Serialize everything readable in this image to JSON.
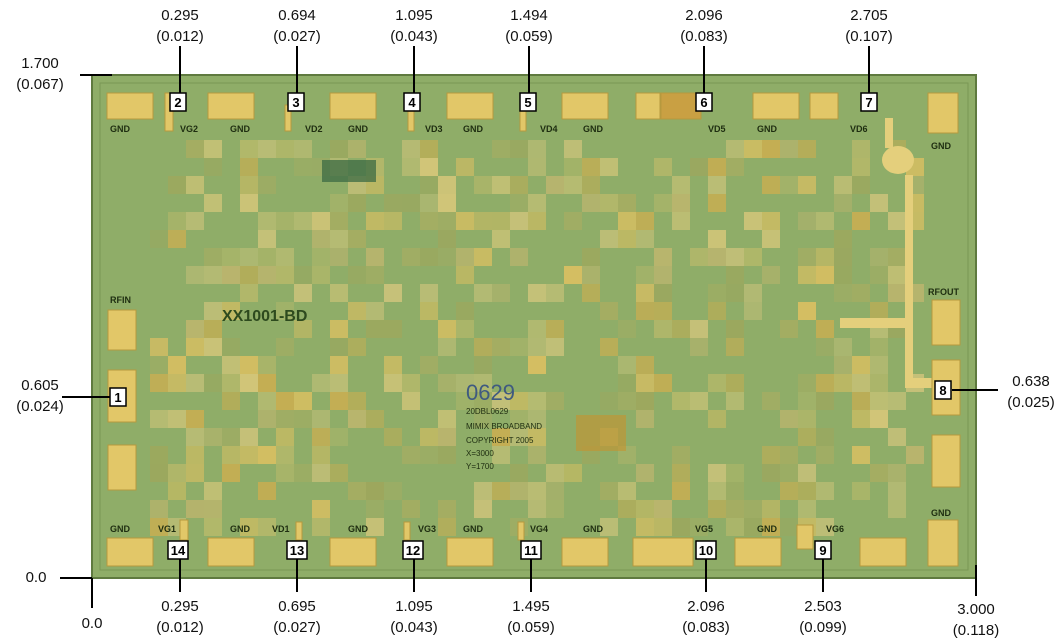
{
  "chip": {
    "part_number": "XX1001-BD",
    "logo_number": "0629",
    "info_lines": [
      "20DBL0629",
      "MIMIX BROADBAND",
      "COPYRIGHT 2005",
      "X=3000",
      "Y=1700"
    ],
    "colors": {
      "die": "#8fad68",
      "die_edge": "#5f7a3f",
      "pad": "#e2c768",
      "pad_dark": "#c9a043",
      "trace": "#e4cf7c"
    }
  },
  "top_pad_labels": [
    "GND",
    "VG2",
    "GND",
    "VD2",
    "GND",
    "VD3",
    "GND",
    "VD4",
    "GND",
    "VD5",
    "GND",
    "VD6",
    "GND"
  ],
  "bottom_pad_labels": [
    "GND",
    "VG1",
    "GND",
    "VD1",
    "GND",
    "VG3",
    "GND",
    "VG4",
    "GND",
    "VG5",
    "GND",
    "VG6",
    "GND"
  ],
  "side_labels": {
    "left": "RFIN",
    "right": "RFOUT"
  },
  "top_dims": [
    {
      "pin": "2",
      "value": "0.295",
      "inch": "(0.012)"
    },
    {
      "pin": "3",
      "value": "0.694",
      "inch": "(0.027)"
    },
    {
      "pin": "4",
      "value": "1.095",
      "inch": "(0.043)"
    },
    {
      "pin": "5",
      "value": "1.494",
      "inch": "(0.059)"
    },
    {
      "pin": "6",
      "value": "2.096",
      "inch": "(0.083)"
    },
    {
      "pin": "7",
      "value": "2.705",
      "inch": "(0.107)"
    }
  ],
  "bottom_dims": [
    {
      "pin": "14",
      "value": "0.295",
      "inch": "(0.012)"
    },
    {
      "pin": "13",
      "value": "0.695",
      "inch": "(0.027)"
    },
    {
      "pin": "12",
      "value": "1.095",
      "inch": "(0.043)"
    },
    {
      "pin": "11",
      "value": "1.495",
      "inch": "(0.059)"
    },
    {
      "pin": "10",
      "value": "2.096",
      "inch": "(0.083)"
    },
    {
      "pin": "9",
      "value": "2.503",
      "inch": "(0.099)"
    }
  ],
  "left_dims": [
    {
      "value": "1.700",
      "inch": "(0.067)"
    },
    {
      "pin": "1",
      "value": "0.605",
      "inch": "(0.024)"
    },
    {
      "value": "0.0",
      "inch": ""
    }
  ],
  "right_dims": [
    {
      "pin": "8",
      "value": "0.638",
      "inch": "(0.025)"
    }
  ],
  "corner_dims": {
    "origin_x": "0.0",
    "width": "3.000",
    "width_inch": "(0.118)"
  }
}
